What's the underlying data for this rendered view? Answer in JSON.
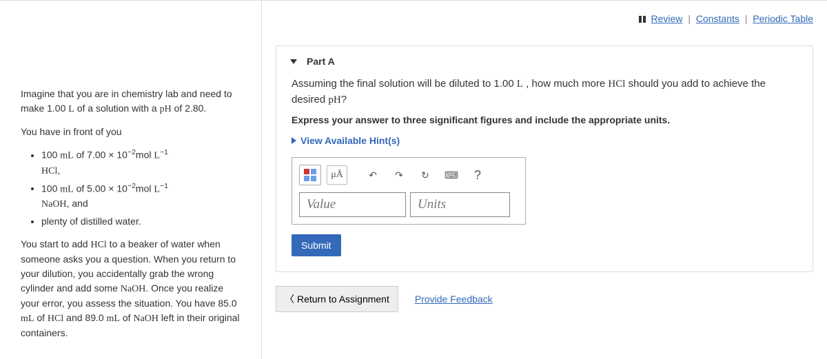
{
  "topLinks": {
    "review": "Review",
    "constants": "Constants",
    "periodic": "Periodic Table"
  },
  "problem": {
    "intro1_a": "Imagine that you are in chemistry lab and need to make 1.00 ",
    "intro1_b": " of a solution with a ",
    "intro1_c": " of 2.80.",
    "L": "L",
    "pH": "pH",
    "youHave": "You have in front of you",
    "bullet1_a": "100 ",
    "bullet1_b": " of 7.00 × 10",
    "bullet1_exp": "−2",
    "bullet1_c": "mol ",
    "bullet1_exp2": "−1",
    "bullet1_d": ",",
    "mL": "mL",
    "HCl": "HCl",
    "bullet2_a": "100 ",
    "bullet2_b": " of 5.00 × 10",
    "bullet2_exp": "−2",
    "bullet2_c": "mol ",
    "bullet2_exp2": "−1",
    "bullet2_d": ", and",
    "NaOH": "NaOH",
    "bullet3": "plenty of distilled water.",
    "story_a": "You start to add ",
    "story_b": " to a beaker of water when someone asks you a question. When you return to your dilution, you accidentally grab the wrong cylinder and add some ",
    "story_c": ". Once you realize your error, you assess the situation. You have 85.0 ",
    "story_d": " of ",
    "story_e": " and 89.0 ",
    "story_f": " of ",
    "story_g": " left in their original containers."
  },
  "part": {
    "title": "Part A",
    "q_a": "Assuming the final solution will be diluted to 1.00 ",
    "q_b": " , how much more ",
    "q_c": " should you add to achieve the desired ",
    "q_d": "?",
    "instruction": "Express your answer to three significant figures and include the appropriate units.",
    "hints": "View Available Hint(s)",
    "unitsBtn": "μÅ",
    "redoSymbol": "↶",
    "redoFwdSymbol": "↷",
    "refreshSymbol": "↻",
    "keyboardSymbol": "⌨",
    "helpSymbol": "?",
    "valuePlaceholder": "Value",
    "unitsPlaceholder": "Units",
    "submit": "Submit"
  },
  "bottom": {
    "return": "Return to Assignment",
    "feedback": "Provide Feedback"
  }
}
